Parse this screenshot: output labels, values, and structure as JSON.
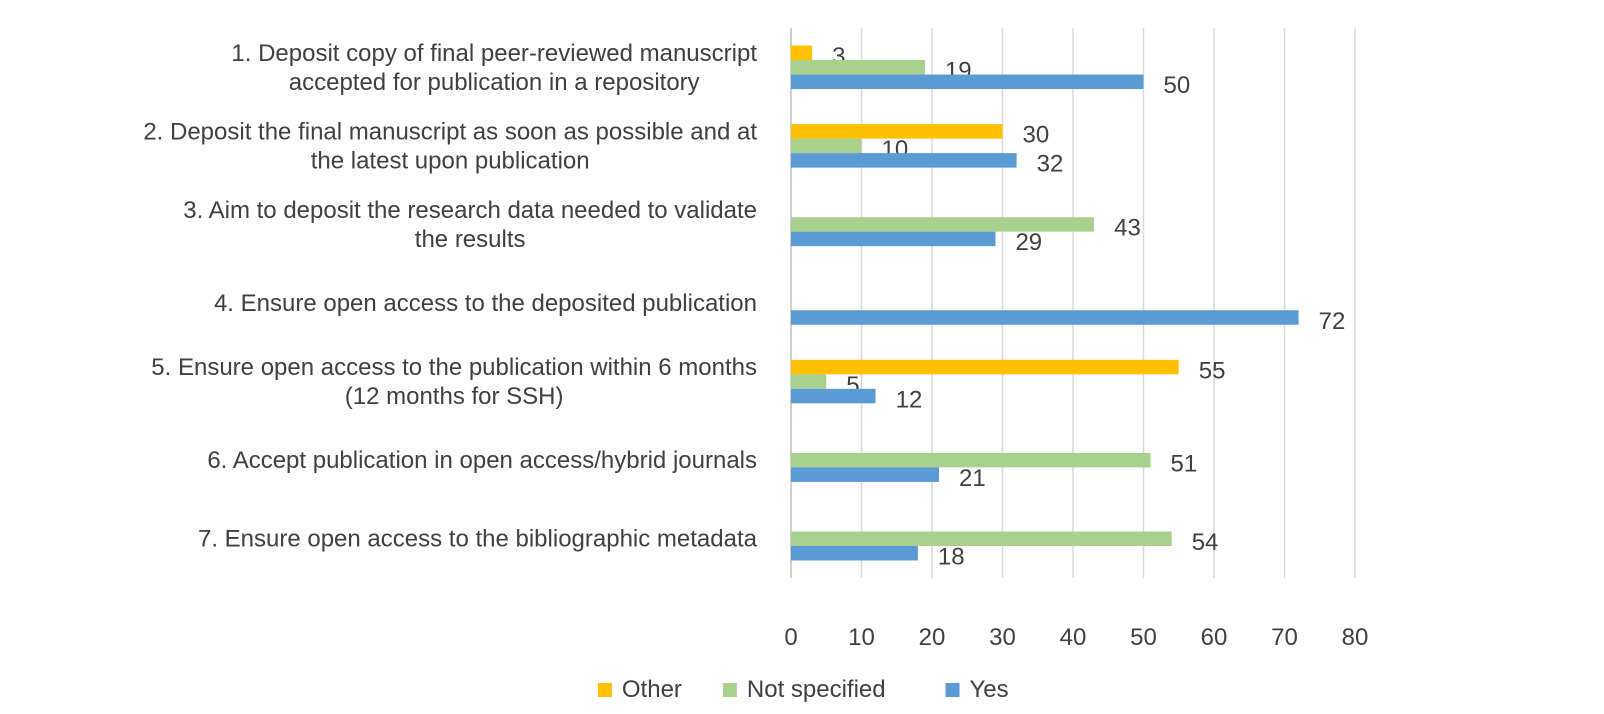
{
  "chart_data": {
    "type": "bar",
    "orientation": "horizontal",
    "categories": [
      [
        "1. Deposit copy of final peer-reviewed manuscript",
        "accepted for publication in a repository"
      ],
      [
        "2. Deposit the final manuscript as soon as possible and at",
        "the latest upon publication"
      ],
      [
        "3. Aim to deposit the research data needed to validate",
        "the results"
      ],
      [
        "4. Ensure open access to the deposited publication"
      ],
      [
        "5. Ensure open access to the publication within 6 months",
        "(12 months for SSH)"
      ],
      [
        "6. Accept publication in open access/hybrid journals"
      ],
      [
        "7. Ensure open access to the bibliographic metadata"
      ]
    ],
    "series": [
      {
        "name": "Other",
        "color": "#FFC000",
        "values": [
          3,
          30,
          null,
          null,
          55,
          null,
          null
        ]
      },
      {
        "name": "Not specified",
        "color": "#A9D18E",
        "values": [
          19,
          10,
          43,
          null,
          5,
          51,
          54
        ]
      },
      {
        "name": "Yes",
        "color": "#5B9BD5",
        "values": [
          50,
          32,
          29,
          72,
          12,
          21,
          18
        ]
      }
    ],
    "xlim": [
      0,
      80
    ],
    "xticks": [
      0,
      10,
      20,
      30,
      40,
      50,
      60,
      70,
      80
    ],
    "grid": true,
    "legend_position": "bottom"
  }
}
